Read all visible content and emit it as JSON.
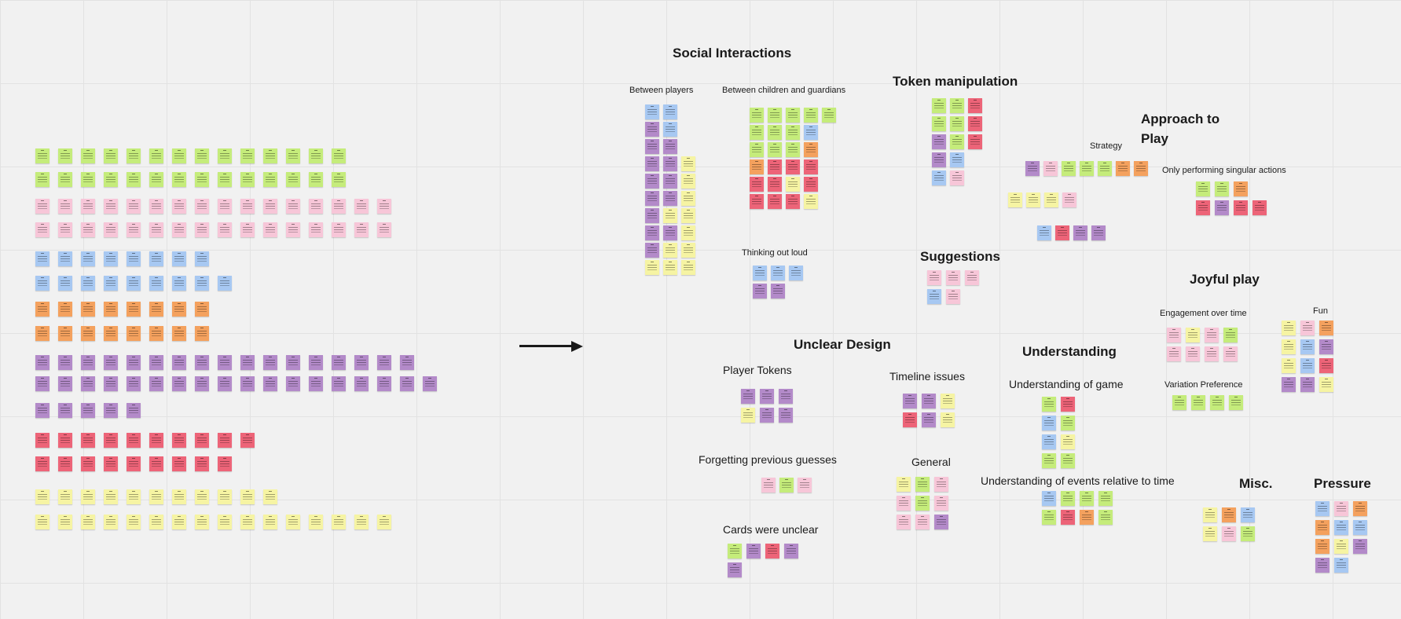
{
  "colors": {
    "green": "#c5ec7b",
    "pink": "#f7c6d8",
    "blue": "#a7c8f2",
    "orange": "#f4a15e",
    "purple": "#b38ac9",
    "red": "#ed6478",
    "yellow": "#f6f4a3",
    "canvas": "#f1f1f1"
  },
  "headings": {
    "social": "Social Interactions",
    "between_players": "Between players",
    "between_children": "Between children and guardians",
    "thinking_out_loud": "Thinking out loud",
    "token_manipulation": "Token manipulation",
    "approach": "Approach to",
    "approach2": "Play",
    "strategy": "Strategy",
    "singular_actions": "Only performing singular actions",
    "suggestions": "Suggestions",
    "joyful": "Joyful play",
    "engagement": "Engagement over time",
    "fun": "Fun",
    "variation": "Variation Preference",
    "unclear_design": "Unclear Design",
    "player_tokens": "Player Tokens",
    "forgetting": "Forgetting previous guesses",
    "cards_unclear": "Cards were unclear",
    "timeline": "Timeline issues",
    "general": "General",
    "understanding": "Understanding",
    "understanding_game": "Understanding of game",
    "understanding_events": "Understanding of events relative to time",
    "misc": "Misc.",
    "pressure": "Pressure"
  },
  "unsorted_rows": [
    {
      "color": "green",
      "count": 14
    },
    {
      "color": "green",
      "count": 14
    },
    {
      "color": "pink",
      "count": 16
    },
    {
      "color": "pink",
      "count": 16
    },
    {
      "color": "blue",
      "count": 8
    },
    {
      "color": "blue",
      "count": 9
    },
    {
      "color": "orange",
      "count": 8
    },
    {
      "color": "orange",
      "count": 8
    },
    {
      "color": "purple",
      "count": 17
    },
    {
      "color": "purple",
      "count": 18
    },
    {
      "color": "purple",
      "count": 5
    },
    {
      "color": "red",
      "count": 10
    },
    {
      "color": "red",
      "count": 9
    },
    {
      "color": "yellow",
      "count": 11
    },
    {
      "color": "yellow",
      "count": 16
    }
  ],
  "clusters": {
    "between_players": [
      [
        "blue",
        "blue"
      ],
      [
        "purple",
        "blue"
      ],
      [
        "purple",
        "purple"
      ],
      [
        "purple",
        "purple",
        "yellow"
      ],
      [
        "purple",
        "purple",
        "yellow"
      ],
      [
        "purple",
        "purple",
        "yellow"
      ],
      [
        "purple",
        "yellow",
        "yellow"
      ],
      [
        "purple",
        "purple",
        "yellow"
      ],
      [
        "purple",
        "yellow",
        "yellow"
      ],
      [
        "yellow",
        "yellow",
        "yellow"
      ]
    ],
    "between_children": [
      [
        "green",
        "green",
        "green",
        "green",
        "green"
      ],
      [
        "green",
        "green",
        "green",
        "blue"
      ],
      [
        "green",
        "green",
        "green",
        "orange"
      ],
      [
        "orange",
        "red",
        "red",
        "red"
      ],
      [
        "red",
        "red",
        "yellow",
        "red"
      ],
      [
        "red",
        "red",
        "red",
        "yellow"
      ]
    ],
    "thinking_out_loud": [
      [
        "blue",
        "blue",
        "blue"
      ],
      [
        "purple",
        "purple"
      ]
    ],
    "token_manipulation": [
      [
        "green",
        "green",
        "red"
      ],
      [
        "green",
        "green",
        "red"
      ],
      [
        "purple",
        "green",
        "red"
      ],
      [
        "purple",
        "blue"
      ],
      [
        "blue",
        "pink"
      ]
    ],
    "strategy": [
      [
        "purple",
        "pink",
        "green",
        "green",
        "green",
        "orange",
        "orange"
      ],
      [
        "yellow",
        "yellow",
        "yellow",
        "pink"
      ],
      [
        "blue",
        "red",
        "purple",
        "purple"
      ]
    ],
    "singular_actions": [
      [
        "green",
        "green",
        "orange"
      ],
      [
        "red",
        "purple",
        "red",
        "red"
      ]
    ],
    "suggestions": [
      [
        "pink",
        "pink",
        "pink"
      ],
      [
        "blue",
        "pink"
      ]
    ],
    "engagement": [
      [
        "pink",
        "yellow",
        "pink",
        "green"
      ],
      [
        "pink",
        "pink",
        "pink",
        "pink"
      ]
    ],
    "fun": [
      [
        "yellow",
        "pink",
        "orange"
      ],
      [
        "yellow",
        "blue",
        "purple"
      ],
      [
        "yellow",
        "blue",
        "red"
      ],
      [
        "purple",
        "purple",
        "yellow"
      ]
    ],
    "variation": [
      [
        "green",
        "green",
        "green",
        "green"
      ]
    ],
    "player_tokens": [
      [
        "purple",
        "purple",
        "purple"
      ],
      [
        "yellow",
        "purple",
        "purple"
      ]
    ],
    "forgetting": [
      [
        "pink",
        "green",
        "pink"
      ]
    ],
    "cards_unclear": [
      [
        "green",
        "purple",
        "red",
        "purple"
      ],
      [
        "purple"
      ]
    ],
    "timeline": [
      [
        "purple",
        "purple",
        "yellow"
      ],
      [
        "red",
        "purple",
        "yellow"
      ]
    ],
    "general": [
      [
        "yellow",
        "green",
        "pink"
      ],
      [
        "pink",
        "green",
        "pink"
      ],
      [
        "pink",
        "pink",
        "purple"
      ]
    ],
    "understanding_game": [
      [
        "green",
        "red"
      ],
      [
        "blue",
        "green"
      ],
      [
        "blue",
        "yellow"
      ],
      [
        "green",
        "green"
      ]
    ],
    "understanding_events": [
      [
        "blue",
        "green",
        "green",
        "green"
      ],
      [
        "green",
        "red",
        "orange",
        "green"
      ]
    ],
    "misc": [
      [
        "yellow",
        "orange",
        "blue"
      ],
      [
        "yellow",
        "pink",
        "green"
      ]
    ],
    "pressure": [
      [
        "blue",
        "pink",
        "orange"
      ],
      [
        "orange",
        "blue",
        "blue"
      ],
      [
        "orange",
        "yellow",
        "purple"
      ],
      [
        "purple",
        "blue"
      ]
    ]
  }
}
